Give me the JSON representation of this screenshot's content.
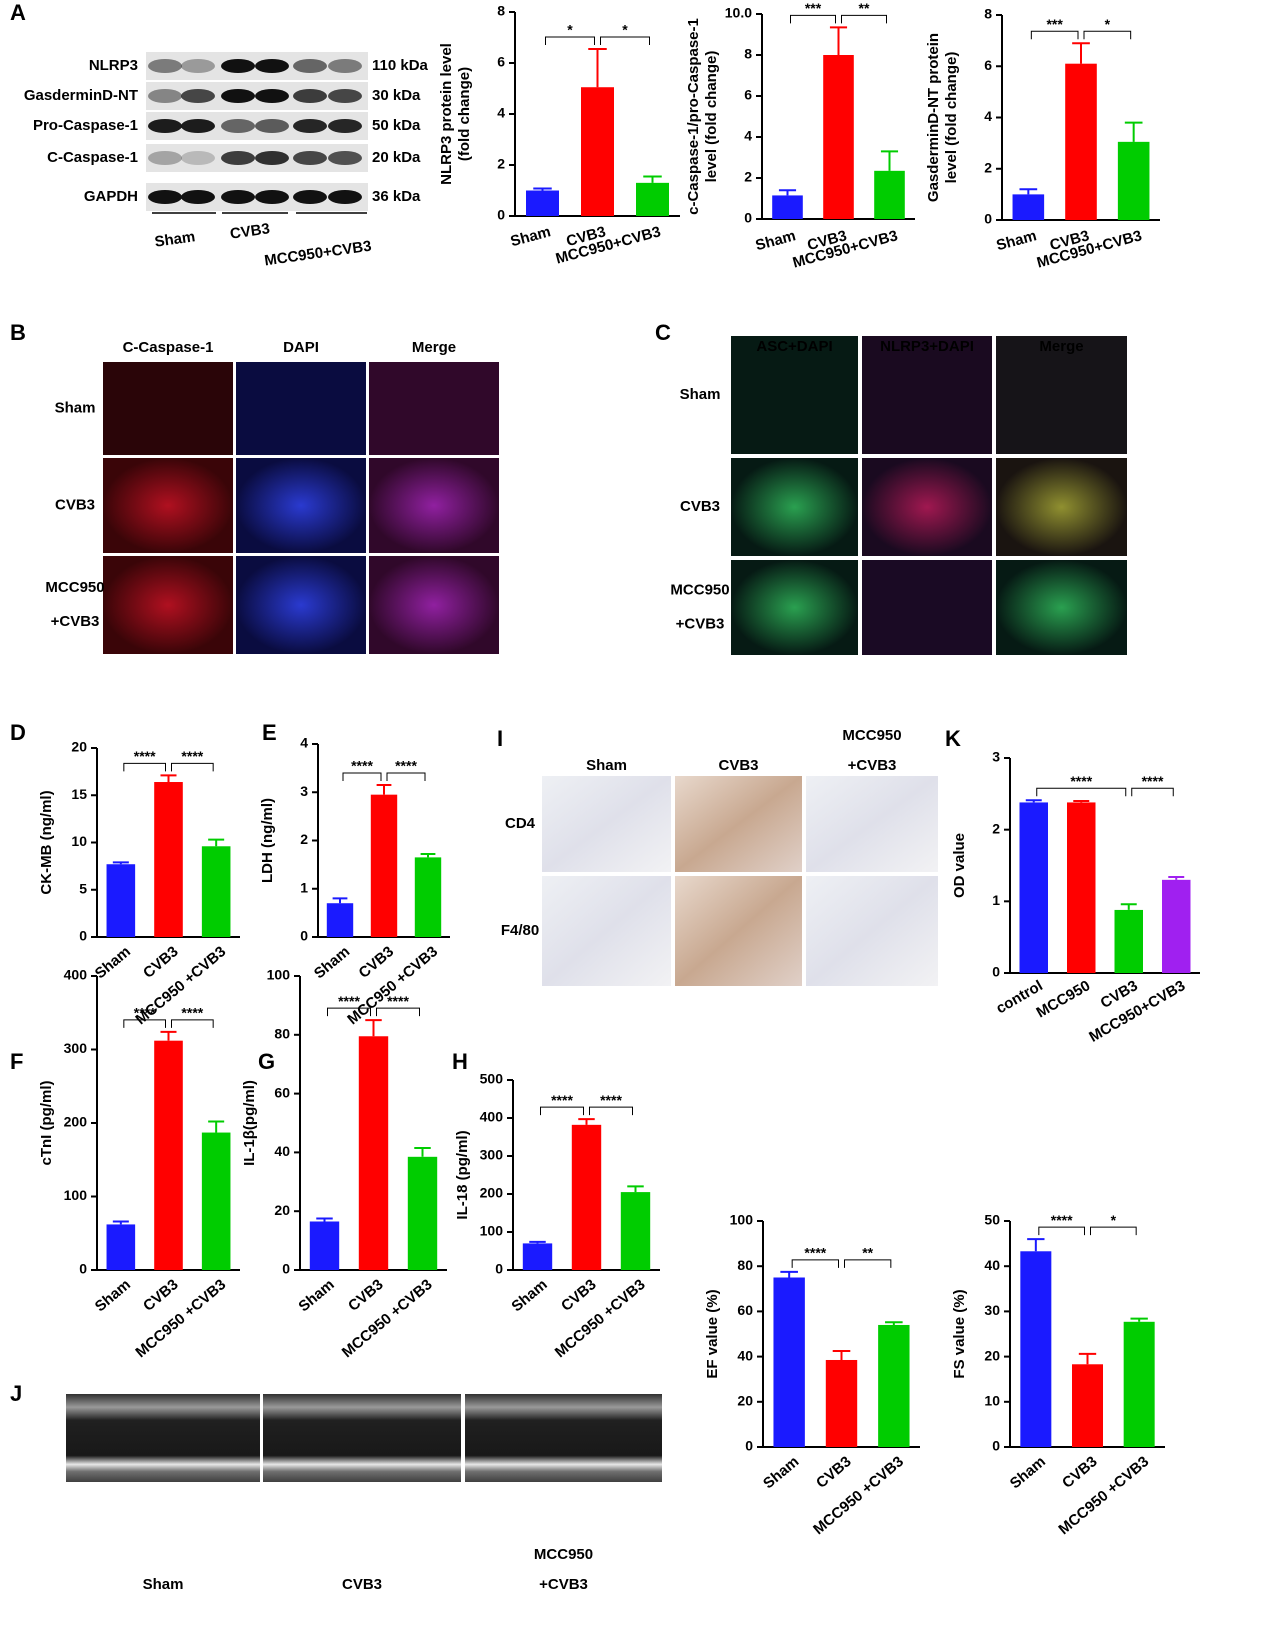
{
  "panel_letters": [
    "A",
    "B",
    "C",
    "D",
    "E",
    "I",
    "K",
    "F",
    "G",
    "H",
    "J"
  ],
  "blot": {
    "proteins": [
      {
        "name": "NLRP3",
        "size": "110 kDa"
      },
      {
        "name": "GasderminD-NT",
        "size": "30 kDa"
      },
      {
        "name": "Pro-Caspase-1",
        "size": "50 kDa"
      },
      {
        "name": "C-Caspase-1",
        "size": "20 kDa"
      },
      {
        "name": "GAPDH",
        "size": "36 kDa"
      }
    ],
    "groups": [
      "Sham",
      "CVB3",
      "MCC950+CVB3"
    ]
  },
  "panel_B": {
    "columns": [
      "C-Caspase-1",
      "DAPI",
      "Merge"
    ],
    "rows": [
      [
        "Sham"
      ],
      [
        "CVB3"
      ],
      [
        "MCC950",
        "+CVB3"
      ]
    ]
  },
  "panel_C": {
    "columns": [
      "ASC+DAPI",
      "NLRP3+DAPI",
      "Merge"
    ],
    "rows": [
      [
        "Sham"
      ],
      [
        "CVB3"
      ],
      [
        "MCC950",
        "+CVB3"
      ]
    ]
  },
  "panel_I": {
    "columns": [
      [
        "Sham"
      ],
      [
        "CVB3"
      ],
      [
        "MCC950",
        "+CVB3"
      ]
    ],
    "rows": [
      "CD4",
      "F4/80"
    ]
  },
  "panel_J": {
    "columns": [
      [
        "Sham"
      ],
      [
        "CVB3"
      ],
      [
        "MCC950",
        "+CVB3"
      ]
    ]
  },
  "chart_data": [
    {
      "type": "bar",
      "ylabel": [
        "NLRP3 protein level",
        "(fold change)"
      ],
      "categories": [
        "Sham",
        "CVB3",
        "MCC950+CVB3"
      ],
      "values": [
        1.0,
        5.05,
        1.3
      ],
      "errors": [
        0.08,
        1.5,
        0.25
      ],
      "colors": [
        "#1a1aff",
        "#ff0000",
        "#00cc00"
      ],
      "ylim": [
        0,
        8
      ],
      "yticks": [
        0,
        2,
        4,
        6,
        8
      ],
      "annotations": [
        {
          "text": "*",
          "between": [
            "Sham",
            "CVB3"
          ]
        },
        {
          "text": "*",
          "between": [
            "CVB3",
            "MCC950+CVB3"
          ]
        }
      ]
    },
    {
      "type": "bar",
      "ylabel": [
        "c-Caspase-1/pro-Caspase-1",
        "level (fold change)"
      ],
      "categories": [
        "Sham",
        "CVB3",
        "MCC950+CVB3"
      ],
      "values": [
        1.15,
        8.0,
        2.35
      ],
      "errors": [
        0.25,
        1.35,
        0.95
      ],
      "colors": [
        "#1a1aff",
        "#ff0000",
        "#00cc00"
      ],
      "ylim": [
        0,
        10
      ],
      "yticks": [
        0,
        2,
        4,
        6,
        8,
        {
          "value": 10,
          "label": "10.0"
        }
      ],
      "annotations": [
        {
          "text": "***",
          "between": [
            "Sham",
            "CVB3"
          ]
        },
        {
          "text": "**",
          "between": [
            "CVB3",
            "MCC950+CVB3"
          ]
        }
      ]
    },
    {
      "type": "bar",
      "ylabel": [
        "GasderminD-NT protein",
        "level (fold change)"
      ],
      "categories": [
        "Sham",
        "CVB3",
        "MCC950+CVB3"
      ],
      "values": [
        1.0,
        6.1,
        3.05
      ],
      "errors": [
        0.2,
        0.8,
        0.75
      ],
      "colors": [
        "#1a1aff",
        "#ff0000",
        "#00cc00"
      ],
      "ylim": [
        0,
        8
      ],
      "yticks": [
        0,
        2,
        4,
        6,
        8
      ],
      "annotations": [
        {
          "text": "***",
          "between": [
            "Sham",
            "CVB3"
          ]
        },
        {
          "text": "*",
          "between": [
            "CVB3",
            "MCC950+CVB3"
          ]
        }
      ]
    },
    {
      "type": "bar",
      "ylabel": [
        "CK-MB (ng/ml)"
      ],
      "categories": [
        "Sham",
        "CVB3",
        "MCC950 +CVB3"
      ],
      "values": [
        7.7,
        16.4,
        9.6
      ],
      "errors": [
        0.2,
        0.7,
        0.7
      ],
      "colors": [
        "#1a1aff",
        "#ff0000",
        "#00cc00"
      ],
      "ylim": [
        0,
        20
      ],
      "yticks": [
        0,
        5,
        10,
        15,
        20
      ],
      "annotations": [
        {
          "text": "****",
          "between": [
            "Sham",
            "CVB3"
          ]
        },
        {
          "text": "****",
          "between": [
            "CVB3",
            "MCC950 +CVB3"
          ]
        }
      ]
    },
    {
      "type": "bar",
      "ylabel": [
        "LDH (ng/ml)"
      ],
      "categories": [
        "Sham",
        "CVB3",
        "MCC950 +CVB3"
      ],
      "values": [
        0.7,
        2.95,
        1.65
      ],
      "errors": [
        0.1,
        0.2,
        0.07
      ],
      "colors": [
        "#1a1aff",
        "#ff0000",
        "#00cc00"
      ],
      "ylim": [
        0,
        4
      ],
      "yticks": [
        0,
        1,
        2,
        3,
        4
      ],
      "annotations": [
        {
          "text": "****",
          "between": [
            "Sham",
            "CVB3"
          ]
        },
        {
          "text": "****",
          "between": [
            "CVB3",
            "MCC950 +CVB3"
          ]
        }
      ]
    },
    {
      "type": "bar",
      "ylabel": [
        "OD value"
      ],
      "categories": [
        "control",
        "MCC950",
        "CVB3",
        "MCC950+CVB3"
      ],
      "values": [
        2.38,
        2.38,
        0.88,
        1.3
      ],
      "errors": [
        0.03,
        0.02,
        0.08,
        0.04
      ],
      "colors": [
        "#1a1aff",
        "#ff0000",
        "#00cc00",
        "#a020f0"
      ],
      "ylim": [
        0,
        3
      ],
      "yticks": [
        0,
        1,
        2,
        3
      ],
      "annotations": [
        {
          "text": "****",
          "between": [
            "control",
            "CVB3"
          ]
        },
        {
          "text": "****",
          "between": [
            "CVB3",
            "MCC950+CVB3"
          ]
        }
      ]
    },
    {
      "type": "bar",
      "ylabel": [
        "cTnI (pg/ml)"
      ],
      "categories": [
        "Sham",
        "CVB3",
        "MCC950 +CVB3"
      ],
      "values": [
        62,
        312,
        187
      ],
      "errors": [
        4,
        12,
        15
      ],
      "colors": [
        "#1a1aff",
        "#ff0000",
        "#00cc00"
      ],
      "ylim": [
        0,
        400
      ],
      "yticks": [
        0,
        100,
        200,
        300,
        400
      ],
      "annotations": [
        {
          "text": "****",
          "between": [
            "Sham",
            "CVB3"
          ]
        },
        {
          "text": "****",
          "between": [
            "CVB3",
            "MCC950 +CVB3"
          ]
        }
      ]
    },
    {
      "type": "bar",
      "ylabel": [
        "IL-1β(pg/ml)"
      ],
      "categories": [
        "Sham",
        "CVB3",
        "MCC950 +CVB3"
      ],
      "values": [
        16.5,
        79.5,
        38.5
      ],
      "errors": [
        1,
        5.5,
        3
      ],
      "colors": [
        "#1a1aff",
        "#ff0000",
        "#00cc00"
      ],
      "ylim": [
        0,
        100
      ],
      "yticks": [
        0,
        20,
        40,
        60,
        80,
        100
      ],
      "annotations": [
        {
          "text": "****",
          "between": [
            "Sham",
            "CVB3"
          ]
        },
        {
          "text": "****",
          "between": [
            "CVB3",
            "MCC950 +CVB3"
          ]
        }
      ]
    },
    {
      "type": "bar",
      "ylabel": [
        "IL-18 (pg/ml)"
      ],
      "categories": [
        "Sham",
        "CVB3",
        "MCC950 +CVB3"
      ],
      "values": [
        70,
        382,
        205
      ],
      "errors": [
        4,
        15,
        15
      ],
      "colors": [
        "#1a1aff",
        "#ff0000",
        "#00cc00"
      ],
      "ylim": [
        0,
        500
      ],
      "yticks": [
        0,
        100,
        200,
        300,
        400,
        500
      ],
      "annotations": [
        {
          "text": "****",
          "between": [
            "Sham",
            "CVB3"
          ]
        },
        {
          "text": "****",
          "between": [
            "CVB3",
            "MCC950 +CVB3"
          ]
        }
      ]
    },
    {
      "type": "bar",
      "ylabel": [
        "EF value (%)"
      ],
      "categories": [
        "Sham",
        "CVB3",
        "MCC950 +CVB3"
      ],
      "values": [
        75,
        38.5,
        54
      ],
      "errors": [
        2.5,
        4,
        1.2
      ],
      "colors": [
        "#1a1aff",
        "#ff0000",
        "#00cc00"
      ],
      "ylim": [
        0,
        100
      ],
      "yticks": [
        0,
        20,
        40,
        60,
        80,
        100
      ],
      "annotations": [
        {
          "text": "****",
          "between": [
            "Sham",
            "CVB3"
          ]
        },
        {
          "text": "**",
          "between": [
            "CVB3",
            "MCC950 +CVB3"
          ]
        }
      ]
    },
    {
      "type": "bar",
      "ylabel": [
        "FS value (%)"
      ],
      "categories": [
        "Sham",
        "CVB3",
        "MCC950 +CVB3"
      ],
      "values": [
        43.3,
        18.3,
        27.7
      ],
      "errors": [
        2.7,
        2.3,
        0.7
      ],
      "colors": [
        "#1a1aff",
        "#ff0000",
        "#00cc00"
      ],
      "ylim": [
        0,
        50
      ],
      "yticks": [
        0,
        10,
        20,
        30,
        40,
        50
      ],
      "annotations": [
        {
          "text": "****",
          "between": [
            "Sham",
            "CVB3"
          ]
        },
        {
          "text": "*",
          "between": [
            "CVB3",
            "MCC950 +CVB3"
          ]
        }
      ]
    }
  ]
}
